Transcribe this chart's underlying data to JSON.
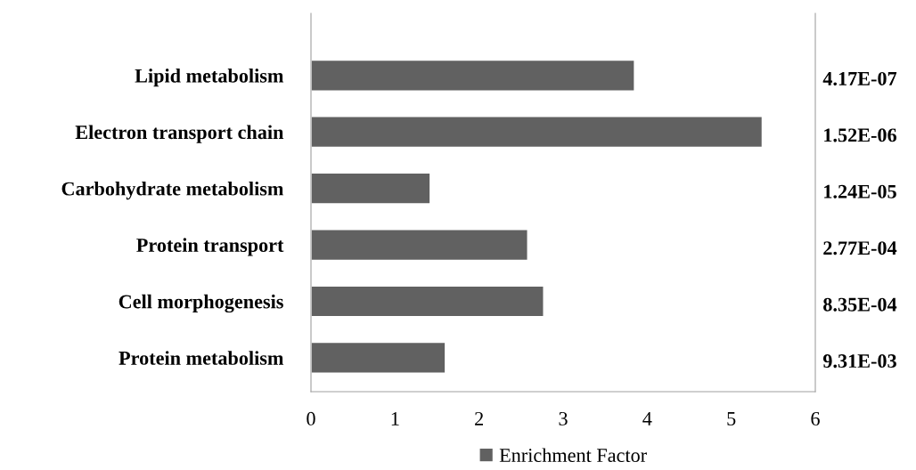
{
  "chart_data": {
    "type": "bar",
    "orientation": "horizontal",
    "categories": [
      "Lipid metabolism",
      "Electron transport chain",
      "Carbohydrate metabolism",
      "Protein transport",
      "Cell morphogenesis",
      "Protein metabolism"
    ],
    "series": [
      {
        "name": "Enrichment Factor",
        "color": "#616161",
        "values": [
          3.85,
          5.37,
          1.42,
          2.58,
          2.77,
          1.6
        ]
      }
    ],
    "xlim": [
      0,
      6
    ],
    "xticks": [
      0,
      1,
      2,
      3,
      4,
      5,
      6
    ],
    "annotations": [
      "4.17E-07",
      "1.52E-06",
      "1.24E-05",
      "2.77E-04",
      "8.35E-04",
      "9.31E-03"
    ],
    "grid": false,
    "legend": "bottom"
  }
}
